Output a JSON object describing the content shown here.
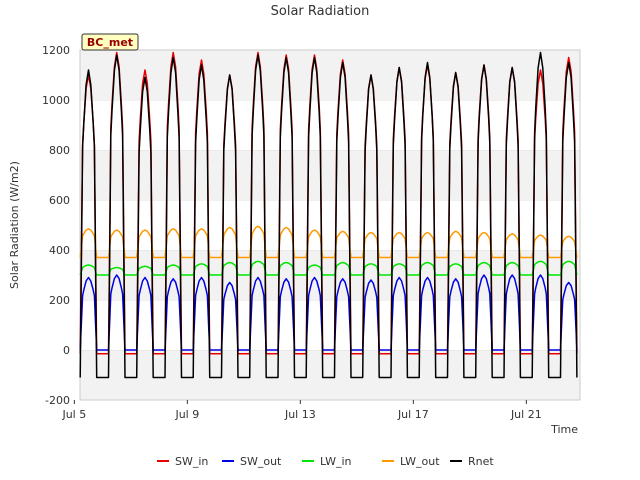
{
  "chart_data": {
    "type": "line",
    "title": "Solar Radiation",
    "xlabel": "Time",
    "ylabel": "Solar Radiation (W/m2)",
    "station_label": "BC_met",
    "xlim": [
      5.2,
      22.9
    ],
    "ylim": [
      -200,
      1200
    ],
    "y_ticks": [
      -200,
      0,
      200,
      400,
      600,
      800,
      1000,
      1200
    ],
    "x_ticks": [
      {
        "value": 5,
        "label": "Jul 5"
      },
      {
        "value": 9,
        "label": "Jul 9"
      },
      {
        "value": 13,
        "label": "Jul 13"
      },
      {
        "value": 17,
        "label": "Jul 17"
      },
      {
        "value": 21,
        "label": "Jul 21"
      }
    ],
    "grid_bands": true,
    "legend_position": "bottom",
    "daily_sampling": {
      "start_day": 5,
      "day_count": 18,
      "hours": [
        0,
        5,
        6,
        7,
        8,
        10,
        12,
        14,
        16,
        17,
        18,
        19,
        23
      ]
    },
    "series": [
      {
        "name": "SW_in",
        "color": "#e60000",
        "day_peaks": [
          1100,
          1190,
          1120,
          1190,
          1160,
          1100,
          1190,
          1180,
          1180,
          1160,
          1100,
          1130,
          1140,
          1110,
          1140,
          1130,
          1120,
          1170
        ],
        "night_value": -15
      },
      {
        "name": "SW_out",
        "color": "#0000e6",
        "day_peaks": [
          290,
          300,
          290,
          285,
          290,
          270,
          290,
          285,
          290,
          285,
          280,
          290,
          290,
          285,
          300,
          300,
          300,
          270
        ],
        "night_value": 0
      },
      {
        "name": "LW_in",
        "color": "#00e600",
        "day_peaks": [
          340,
          330,
          335,
          340,
          345,
          350,
          355,
          350,
          340,
          350,
          345,
          345,
          350,
          345,
          350,
          350,
          355,
          355
        ],
        "night_value": 300
      },
      {
        "name": "LW_out",
        "color": "#ff9900",
        "day_peaks": [
          485,
          480,
          480,
          485,
          485,
          490,
          495,
          490,
          480,
          475,
          470,
          470,
          470,
          475,
          470,
          465,
          460,
          455
        ],
        "night_value": 370
      },
      {
        "name": "Rnet",
        "color": "#000000",
        "day_peaks": [
          1120,
          1180,
          1090,
          1170,
          1140,
          1100,
          1180,
          1170,
          1170,
          1150,
          1100,
          1130,
          1150,
          1110,
          1140,
          1130,
          1190,
          1150
        ],
        "night_value": -110
      }
    ]
  }
}
